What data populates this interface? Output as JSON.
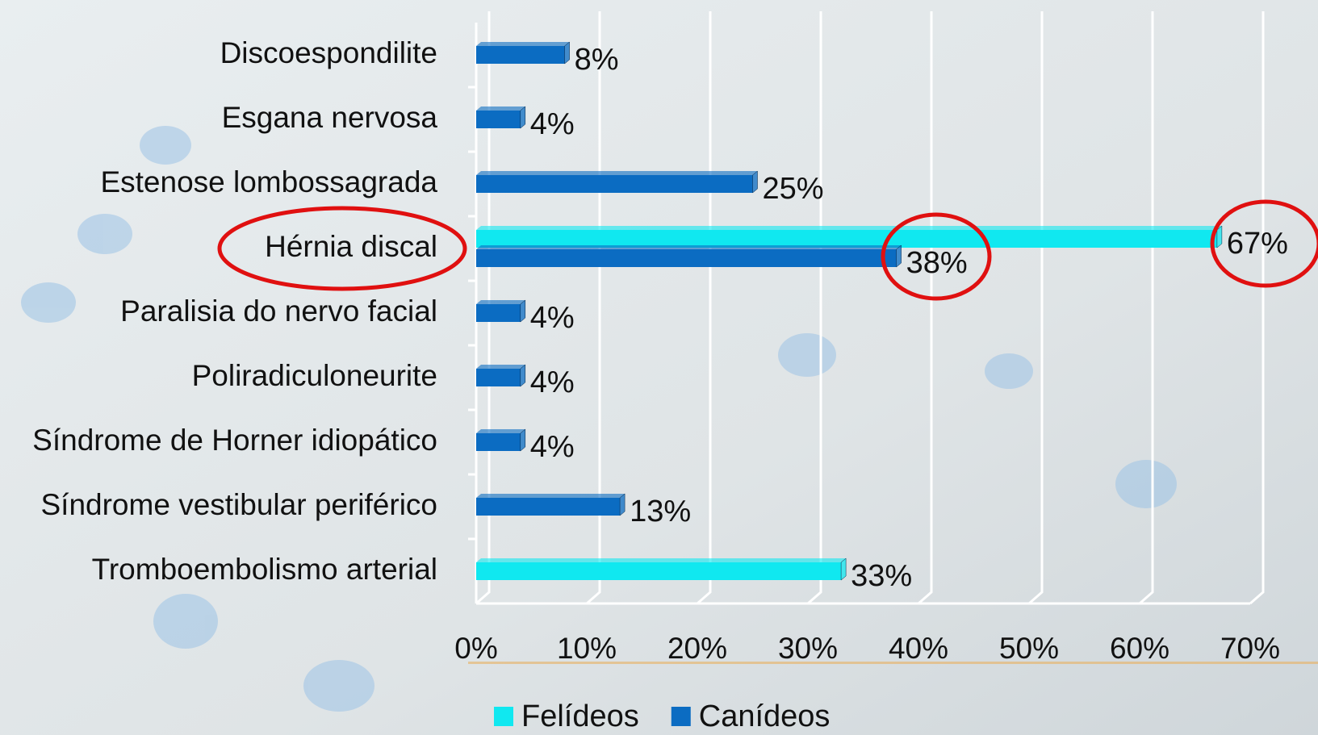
{
  "chart_data": {
    "type": "bar",
    "orientation": "horizontal",
    "categories": [
      "Discoespondilite",
      "Esgana nervosa",
      "Estenose lombossagrada",
      "Hérnia discal",
      "Paralisia do nervo facial",
      "Poliradiculoneurite",
      "Síndrome de Horner idiopático",
      "Síndrome vestibular periférico",
      "Tromboembolismo arterial"
    ],
    "series": [
      {
        "name": "Felídeos",
        "color": "#10e8f0",
        "values": [
          null,
          null,
          null,
          67,
          null,
          null,
          null,
          null,
          33
        ],
        "value_labels": [
          null,
          null,
          null,
          "67%",
          null,
          null,
          null,
          null,
          "33%"
        ]
      },
      {
        "name": "Canídeos",
        "color": "#0b6cc2",
        "values": [
          8,
          4,
          25,
          38,
          4,
          4,
          4,
          13,
          null
        ],
        "value_labels": [
          "8%",
          "4%",
          "25%",
          "38%",
          "4%",
          "4%",
          "4%",
          "13%",
          null
        ]
      }
    ],
    "xlim": [
      0,
      70
    ],
    "xticks": [
      {
        "value": 0,
        "label": "0%"
      },
      {
        "value": 10,
        "label": "10%"
      },
      {
        "value": 20,
        "label": "20%"
      },
      {
        "value": 30,
        "label": "30%"
      },
      {
        "value": 40,
        "label": "40%"
      },
      {
        "value": 50,
        "label": "50%"
      },
      {
        "value": 60,
        "label": "60%"
      },
      {
        "value": 70,
        "label": "70%"
      }
    ],
    "grid": true,
    "legend": "bottom"
  }
}
